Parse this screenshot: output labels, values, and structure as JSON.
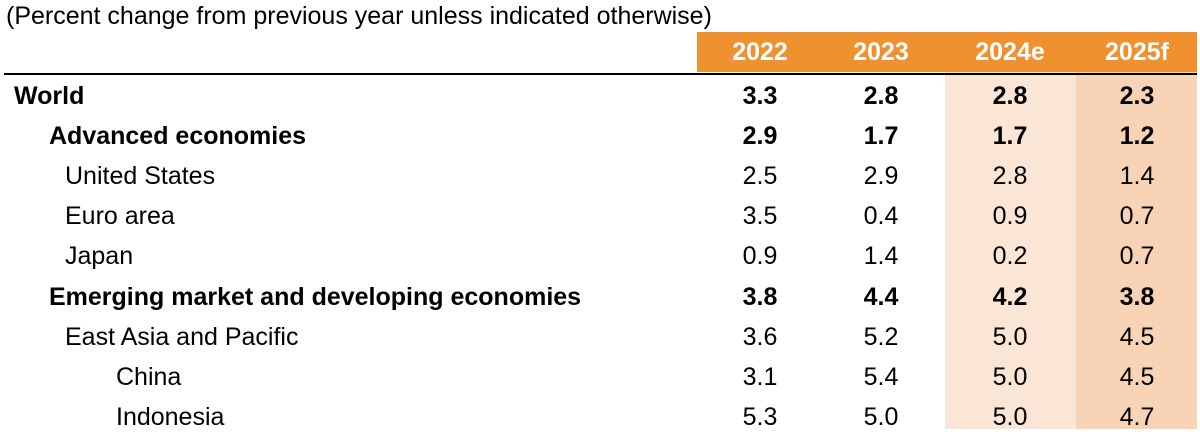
{
  "caption": "(Percent change from previous year unless indicated otherwise)",
  "colors": {
    "header_bg": "#f0912f",
    "header_text": "#ffffff",
    "band_2024e": "#fbe6d6",
    "band_2025f": "#f8d3b5"
  },
  "columns": [
    "2022",
    "2023",
    "2024e",
    "2025f"
  ],
  "rows": [
    {
      "label": "World",
      "level": 0,
      "bold": true,
      "values": [
        "3.3",
        "2.8",
        "2.8",
        "2.3"
      ]
    },
    {
      "label": "Advanced economies",
      "level": 1,
      "bold": true,
      "values": [
        "2.9",
        "1.7",
        "1.7",
        "1.2"
      ]
    },
    {
      "label": "United States",
      "level": 2,
      "bold": false,
      "values": [
        "2.5",
        "2.9",
        "2.8",
        "1.4"
      ]
    },
    {
      "label": "Euro area",
      "level": 2,
      "bold": false,
      "values": [
        "3.5",
        "0.4",
        "0.9",
        "0.7"
      ]
    },
    {
      "label": "Japan",
      "level": 2,
      "bold": false,
      "values": [
        "0.9",
        "1.4",
        "0.2",
        "0.7"
      ]
    },
    {
      "label": "Emerging market and developing economies",
      "level": 1,
      "bold": true,
      "values": [
        "3.8",
        "4.4",
        "4.2",
        "3.8"
      ]
    },
    {
      "label": "East Asia and Pacific",
      "level": 2,
      "bold": false,
      "values": [
        "3.6",
        "5.2",
        "5.0",
        "4.5"
      ]
    },
    {
      "label": "China",
      "level": 3,
      "bold": false,
      "values": [
        "3.1",
        "5.4",
        "5.0",
        "4.5"
      ]
    },
    {
      "label": "Indonesia",
      "level": 3,
      "bold": false,
      "values": [
        "5.3",
        "5.0",
        "5.0",
        "4.7"
      ]
    }
  ]
}
